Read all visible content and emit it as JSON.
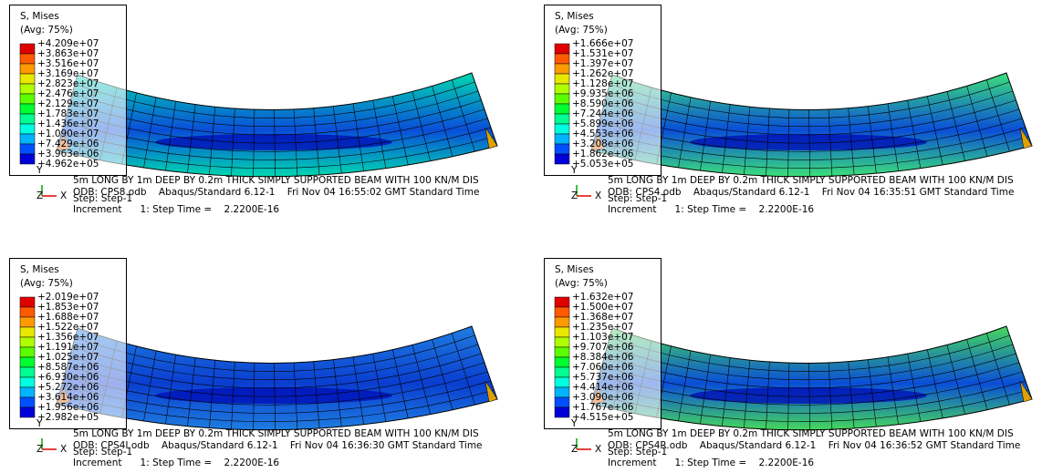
{
  "panels": [
    {
      "legend": {
        "title": "S, Mises",
        "subtitle": "(Avg: 75%)",
        "values": [
          "+4.209e+07",
          "+3.863e+07",
          "+3.516e+07",
          "+3.169e+07",
          "+2.823e+07",
          "+2.476e+07",
          "+2.129e+07",
          "+1.783e+07",
          "+1.436e+07",
          "+1.090e+07",
          "+7.429e+06",
          "+3.963e+06",
          "+4.962e+05"
        ]
      },
      "triad": {
        "y": "Y",
        "z": "Z",
        "x": "X"
      },
      "info": [
        "5m LONG BY 1m DEEP BY 0.2m THICK SIMPLY SUPPORTED BEAM WITH 100 KN/M DIS",
        "ODB: CPS8.odb    Abaqus/Standard 6.12-1    Fri Nov 04 16:55:02 GMT Standard Time",
        "Step: Step-1",
        "Increment      1: Step Time =    2.2200E-16"
      ]
    },
    {
      "legend": {
        "title": "S, Mises",
        "subtitle": "(Avg: 75%)",
        "values": [
          "+1.666e+07",
          "+1.531e+07",
          "+1.397e+07",
          "+1.262e+07",
          "+1.128e+07",
          "+9.935e+06",
          "+8.590e+06",
          "+7.244e+06",
          "+5.899e+06",
          "+4.553e+06",
          "+3.208e+06",
          "+1.862e+06",
          "+5.053e+05"
        ]
      },
      "triad": {
        "y": "Y",
        "z": "Z",
        "x": "X"
      },
      "info": [
        "5m LONG BY 1m DEEP BY 0.2m THICK SIMPLY SUPPORTED BEAM WITH 100 KN/M DIS",
        "ODB: CPS4.odb    Abaqus/Standard 6.12-1    Fri Nov 04 16:35:51 GMT Standard Time",
        "Step: Step-1",
        "Increment      1: Step Time =    2.2200E-16"
      ]
    },
    {
      "legend": {
        "title": "S, Mises",
        "subtitle": "(Avg: 75%)",
        "values": [
          "+2.019e+07",
          "+1.853e+07",
          "+1.688e+07",
          "+1.522e+07",
          "+1.356e+07",
          "+1.191e+07",
          "+1.025e+07",
          "+8.587e+06",
          "+6.930e+06",
          "+5.272e+06",
          "+3.614e+06",
          "+1.956e+06",
          "+2.982e+05"
        ]
      },
      "triad": {
        "y": "Y",
        "z": "Z",
        "x": "X"
      },
      "info": [
        "5m LONG BY 1m DEEP BY 0.2m THICK SIMPLY SUPPORTED BEAM WITH 100 KN/M DIS",
        "ODB: CPS4I.odb    Abaqus/Standard 6.12-1    Fri Nov 04 16:36:30 GMT Standard Time",
        "Step: Step-1",
        "Increment      1: Step Time =    2.2200E-16"
      ]
    },
    {
      "legend": {
        "title": "S, Mises",
        "subtitle": "(Avg: 75%)",
        "values": [
          "+1.632e+07",
          "+1.500e+07",
          "+1.368e+07",
          "+1.235e+07",
          "+1.103e+07",
          "+9.707e+06",
          "+8.384e+06",
          "+7.060e+06",
          "+5.737e+06",
          "+4.414e+06",
          "+3.090e+06",
          "+1.767e+06",
          "+4.515e+05"
        ]
      },
      "triad": {
        "y": "Y",
        "z": "Z",
        "x": "X"
      },
      "info": [
        "5m LONG BY 1m DEEP BY 0.2m THICK SIMPLY SUPPORTED BEAM WITH 100 KN/M DIS",
        "ODB: CPS4R.odb    Abaqus/Standard 6.12-1    Fri Nov 04 16:36:52 GMT Standard Time",
        "Step: Step-1",
        "Increment      1: Step Time =    2.2200E-16"
      ]
    }
  ]
}
